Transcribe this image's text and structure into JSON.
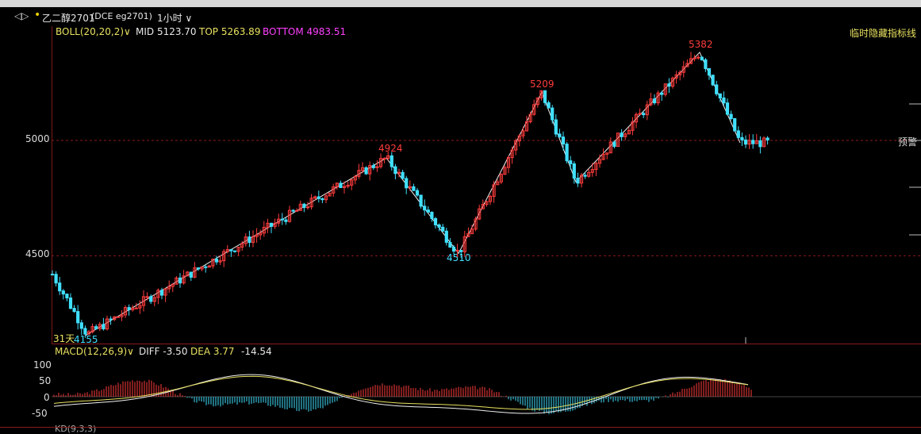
{
  "titlebar": {
    "nav_icon": "back-forward-icon",
    "dot_icon": "yellow-dot",
    "symbol": "乙二醇2701",
    "code": "(DCE eg2701)",
    "period": "1小时"
  },
  "boll": {
    "label": "BOLL(20,20,2)",
    "mid": "MID 5123.70",
    "top": "TOP 5263.89",
    "bottom": "BOTTOM 4983.51"
  },
  "hide_indicator": "临时隐藏指标线",
  "alert": "预警",
  "price_axis": {
    "ticks": [
      "5000",
      "4500"
    ]
  },
  "annotations": {
    "days": "31天",
    "p1": "4155",
    "p2": "4924",
    "p3": "4510",
    "p4": "5209",
    "p5": "5382"
  },
  "macd": {
    "label": "MACD(12,26,9)",
    "diff": "DIFF -3.50",
    "dea": "DEA 3.77",
    "hist": "-14.54",
    "axis": [
      "100",
      "50",
      "0",
      "-50"
    ]
  },
  "kd_label": "KD(9,3,3)",
  "colors": {
    "up": "#ff3c3c",
    "down": "#40e0ff",
    "boll": "#e8e060",
    "grid": "#8a1a1a"
  },
  "chart_data": {
    "type": "candlestick",
    "zigzag_points": [
      4155,
      4924,
      4510,
      5209,
      4820,
      5382,
      4990
    ],
    "price_levels": [
      5000,
      4500
    ]
  }
}
